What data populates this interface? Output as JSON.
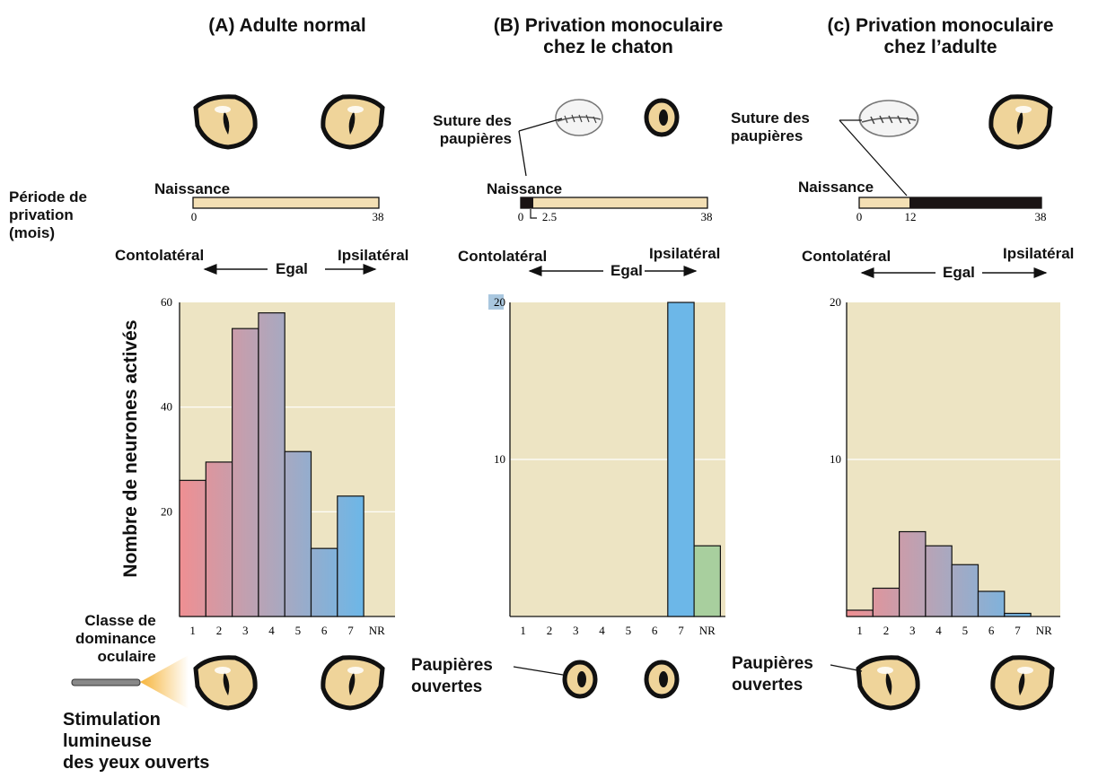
{
  "panels": [
    {
      "title_line1": "(A) Adulte normal",
      "title_line2": ""
    },
    {
      "title_line1": "(B) Privation monoculaire",
      "title_line2": "chez le chaton"
    },
    {
      "title_line1": "(c) Privation monoculaire",
      "title_line2": "chez l’adulte"
    }
  ],
  "labels": {
    "deprivation_period": [
      "Période de",
      "privation",
      "(mois)"
    ],
    "birth": "Naissance",
    "contra": "Contolatéral",
    "equal": "Egal",
    "ipsi": "Ipsilatéral",
    "suture": [
      "Suture des",
      "paupières"
    ],
    "open_lids": [
      "Paupières",
      "ouvertes"
    ],
    "dominance_class": [
      "Classe de",
      "dominance",
      "oculaire"
    ],
    "stimulation": [
      "Stimulation",
      "lumineuse",
      "des yeux ouverts"
    ],
    "y_axis": "Nombre de neurones activés"
  },
  "timelines": [
    {
      "ticks": [
        "0",
        "38"
      ],
      "deprived_months": [
        0,
        0
      ]
    },
    {
      "ticks": [
        "0",
        "2.5",
        "38"
      ],
      "deprived_months": [
        0,
        2.5
      ]
    },
    {
      "ticks": [
        "0",
        "12",
        "38"
      ],
      "deprived_months": [
        12,
        38
      ]
    }
  ],
  "colors": {
    "plot_bg": "#ede4c3",
    "timeline_fill": "#f3dfb4",
    "deprived_fill": "#1a1414",
    "class_1": "#ef8f92",
    "class_4": "#b0a6bb",
    "class_7": "#6cb7e8",
    "nr": "#a8cf9e",
    "eye_iris": "#efd49a"
  },
  "chart_data": [
    {
      "type": "bar",
      "title": "(A) Adulte normal",
      "categories": [
        "1",
        "2",
        "3",
        "4",
        "5",
        "6",
        "7",
        "NR"
      ],
      "values": [
        26,
        29.5,
        55,
        58,
        31.5,
        13,
        23,
        0
      ],
      "ylabel": "Nombre de neurones activés",
      "xlabel": "Classe de dominance oculaire",
      "yticks": [
        "20",
        "40",
        "60"
      ],
      "ylim": [
        0,
        60
      ]
    },
    {
      "type": "bar",
      "title": "(B) Privation monoculaire chez le chaton",
      "categories": [
        "1",
        "2",
        "3",
        "4",
        "5",
        "6",
        "7",
        "NR"
      ],
      "values": [
        0,
        0,
        0,
        0,
        0,
        0,
        20,
        4.5
      ],
      "yticks": [
        "10",
        "20"
      ],
      "ylim": [
        0,
        20
      ]
    },
    {
      "type": "bar",
      "title": "(c) Privation monoculaire chez l’adulte",
      "categories": [
        "1",
        "2",
        "3",
        "4",
        "5",
        "6",
        "7",
        "NR"
      ],
      "values": [
        0.4,
        1.8,
        5.4,
        4.5,
        3.3,
        1.6,
        0.2,
        0
      ],
      "yticks": [
        "10",
        "20"
      ],
      "ylim": [
        0,
        20
      ]
    }
  ]
}
